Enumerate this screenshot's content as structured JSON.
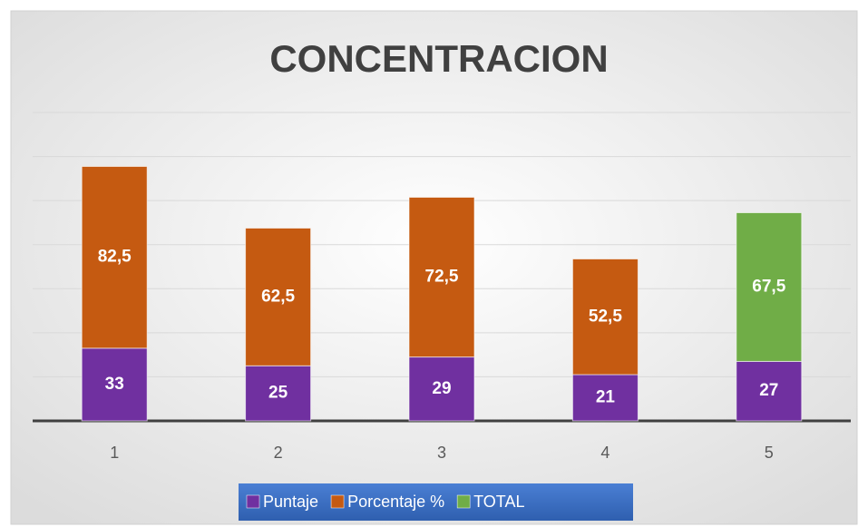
{
  "chart_data": {
    "type": "stacked_bar",
    "title": "CONCENTRACION",
    "categories": [
      "1",
      "2",
      "3",
      "4",
      "5"
    ],
    "series": [
      {
        "name": "Puntaje",
        "color": "#7030a0",
        "values": [
          33,
          25,
          29,
          21,
          27
        ]
      },
      {
        "name": "Porcentaje %",
        "color": "#c55a11",
        "values": [
          82.5,
          62.5,
          72.5,
          52.5,
          null
        ],
        "value_labels": [
          "82,5",
          "62,5",
          "72,5",
          "52,5",
          null
        ]
      },
      {
        "name": "TOTAL",
        "color": "#70ad47",
        "values": [
          null,
          null,
          null,
          null,
          67.5
        ],
        "value_labels": [
          null,
          null,
          null,
          null,
          "67,5"
        ]
      }
    ],
    "ylim": [
      0,
      140
    ],
    "yticks": [
      0,
      20,
      40,
      60,
      80,
      100,
      120,
      140
    ],
    "grid": true,
    "legend": "bottom"
  }
}
